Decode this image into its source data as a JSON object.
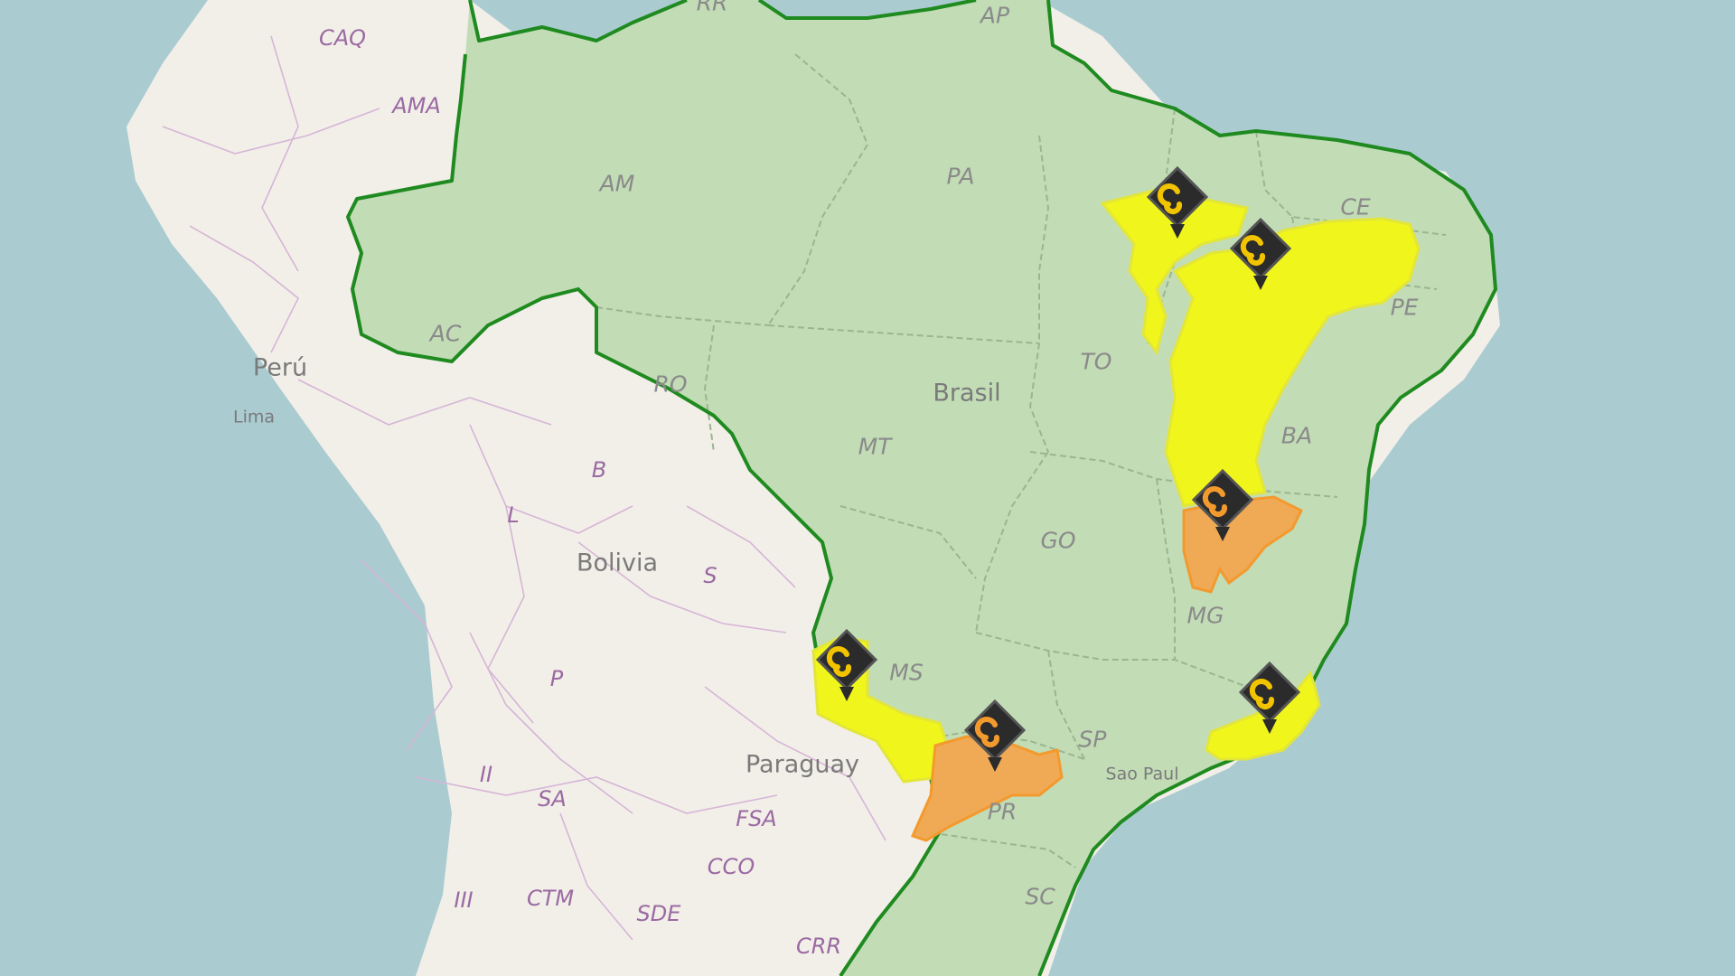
{
  "map": {
    "country_labels": {
      "brasil": "Brasil",
      "peru": "Perú",
      "bolivia": "Bolivia",
      "paraguay": "Paraguay"
    },
    "city_labels": {
      "lima": "Lima",
      "sao_paulo": "Sao Paul"
    },
    "brazil_state_labels": {
      "ap": "AP",
      "rr": "RR",
      "am": "AM",
      "pa": "PA",
      "ce": "CE",
      "pe": "PE",
      "ac": "AC",
      "ro": "RO",
      "to": "TO",
      "mt": "MT",
      "ba": "BA",
      "go": "GO",
      "mg": "MG",
      "ms": "MS",
      "sp": "SP",
      "pr": "PR",
      "sc": "SC"
    },
    "neighbor_region_labels": {
      "caq": "CAQ",
      "ama": "AMA",
      "b": "B",
      "l": "L",
      "s": "S",
      "p": "P",
      "ii": "II",
      "sa": "SA",
      "fsa": "FSA",
      "cco": "CCO",
      "iii": "III",
      "ctm": "CTM",
      "sde": "SDE",
      "crr": "CRR"
    },
    "colors": {
      "ocean": "#aacbd0",
      "land": "#f2efe9",
      "brazil_fill": "#c2dcb6",
      "brazil_border": "#1f8a1f",
      "alert_yellow": "#f0f51c",
      "alert_yellow_stroke": "#e3e63a",
      "alert_orange": "#f0a955",
      "alert_orange_stroke": "#f39a2e",
      "marker_body": "#2b2b2b",
      "marker_icon": "#f2c400"
    },
    "alert_markers": [
      {
        "level": "yellow",
        "icon": "storm-icon"
      },
      {
        "level": "yellow",
        "icon": "storm-icon"
      },
      {
        "level": "orange",
        "icon": "storm-icon"
      },
      {
        "level": "yellow",
        "icon": "storm-icon"
      },
      {
        "level": "orange",
        "icon": "storm-icon"
      },
      {
        "level": "yellow",
        "icon": "storm-icon"
      }
    ]
  }
}
